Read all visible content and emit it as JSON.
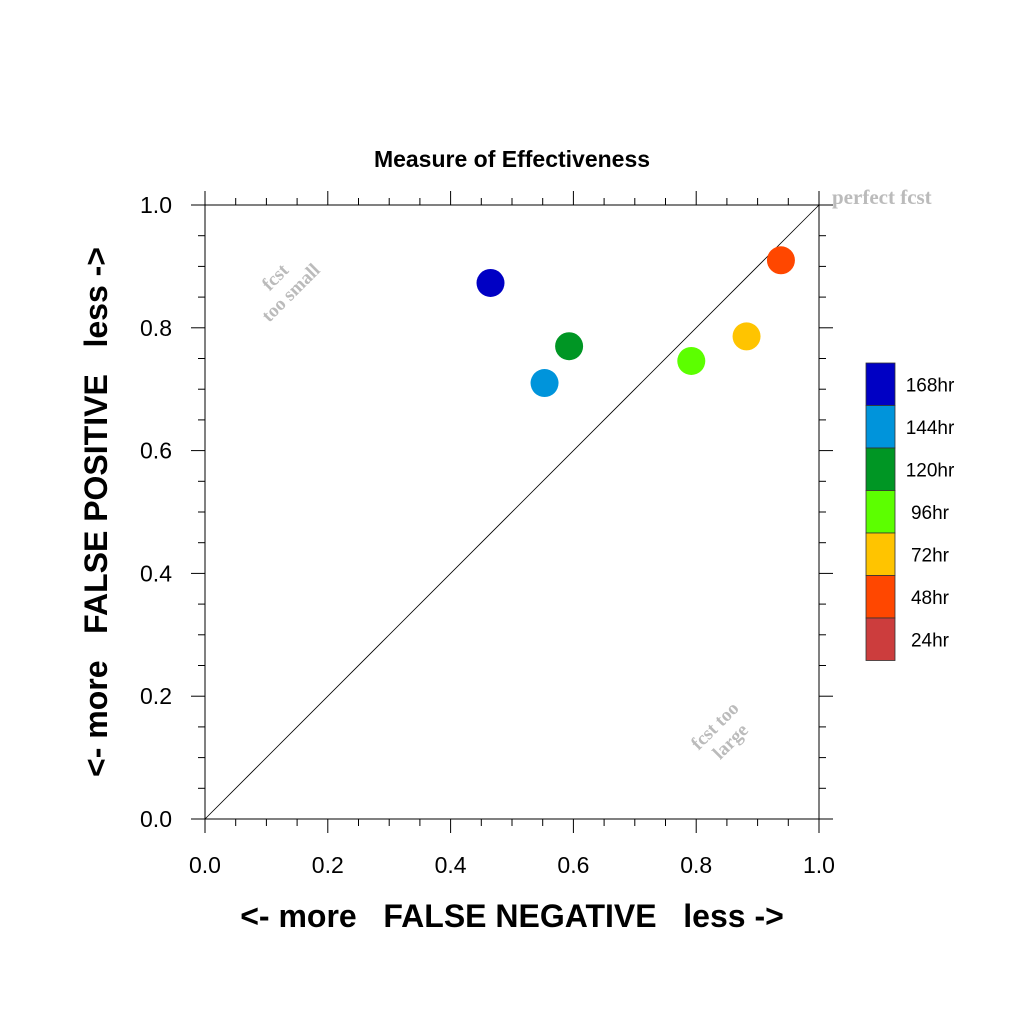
{
  "chart_data": {
    "type": "scatter",
    "title": "Measure of Effectiveness",
    "xlabel": "<- more   FALSE NEGATIVE   less ->",
    "ylabel": "<- more   FALSE POSITIVE   less ->",
    "xlim": [
      0.0,
      1.0
    ],
    "ylim": [
      0.0,
      1.0
    ],
    "x_ticks": [
      {
        "value": 0.0,
        "label": "0.0"
      },
      {
        "value": 0.2,
        "label": "0.2"
      },
      {
        "value": 0.4,
        "label": "0.4"
      },
      {
        "value": 0.6,
        "label": "0.6"
      },
      {
        "value": 0.8,
        "label": "0.8"
      },
      {
        "value": 1.0,
        "label": "1.0"
      }
    ],
    "y_ticks": [
      {
        "value": 0.0,
        "label": "0.0"
      },
      {
        "value": 0.2,
        "label": "0.2"
      },
      {
        "value": 0.4,
        "label": "0.4"
      },
      {
        "value": 0.6,
        "label": "0.6"
      },
      {
        "value": 0.8,
        "label": "0.8"
      },
      {
        "value": 1.0,
        "label": "1.0"
      }
    ],
    "grid": false,
    "diagonal_reference_line": true,
    "legend_position": "right",
    "annotations": [
      {
        "text": "perfect fcst",
        "color": "#bbbbbb"
      },
      {
        "text": "fcst",
        "color": "#bbbbbb"
      },
      {
        "text": "too small",
        "color": "#bbbbbb"
      },
      {
        "text": "fcst too",
        "color": "#bbbbbb"
      },
      {
        "text": "large",
        "color": "#bbbbbb"
      }
    ],
    "series": [
      {
        "name": "168hr",
        "color": "#0000c4",
        "x": 0.465,
        "y": 0.873
      },
      {
        "name": "144hr",
        "color": "#0094db",
        "x": 0.553,
        "y": 0.71
      },
      {
        "name": "120hr",
        "color": "#009624",
        "x": 0.593,
        "y": 0.77
      },
      {
        "name": "96hr",
        "color": "#5cff00",
        "x": 0.792,
        "y": 0.746
      },
      {
        "name": "72hr",
        "color": "#ffc400",
        "x": 0.882,
        "y": 0.786
      },
      {
        "name": "48hr",
        "color": "#ff4700",
        "x": 0.938,
        "y": 0.91
      },
      {
        "name": "24hr",
        "color": "#cc3d3d"
      }
    ]
  }
}
